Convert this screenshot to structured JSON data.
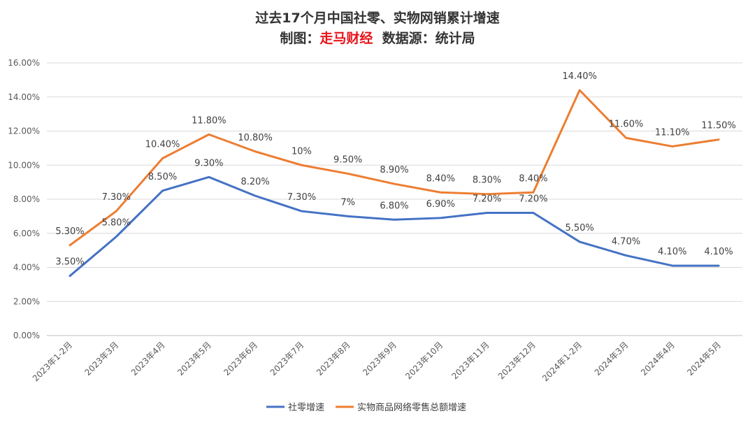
{
  "chart_data": {
    "type": "line",
    "title": "过去17个月中国社零、实物网销累计增速",
    "subtitle": {
      "prefix": "制图：",
      "brand": "走马财经",
      "suffix": "  数据源：统计局"
    },
    "categories": [
      "2023年1-2月",
      "2023年3月",
      "2023年4月",
      "2023年5月",
      "2023年6月",
      "2023年7月",
      "2023年8月",
      "2023年9月",
      "2023年10月",
      "2023年11月",
      "2023年12月",
      "2024年1-2月",
      "2024年3月",
      "2024年4月",
      "2024年5月"
    ],
    "y_ticks": [
      "0.00%",
      "2.00%",
      "4.00%",
      "6.00%",
      "8.00%",
      "10.00%",
      "12.00%",
      "14.00%",
      "16.00%"
    ],
    "ylim": [
      0,
      16
    ],
    "grid": true,
    "legend_position": "bottom",
    "series": [
      {
        "name": "社零增速",
        "color": "#4472c4",
        "values": [
          3.5,
          5.8,
          8.5,
          9.3,
          8.2,
          7.3,
          7.0,
          6.8,
          6.9,
          7.2,
          7.2,
          5.5,
          4.7,
          4.1,
          4.1
        ],
        "labels": [
          "3.50%",
          "5.80%",
          "8.50%",
          "9.30%",
          "8.20%",
          "7.30%",
          "7%",
          "6.80%",
          "6.90%",
          "7.20%",
          "7.20%",
          "5.50%",
          "4.70%",
          "4.10%",
          "4.10%"
        ]
      },
      {
        "name": "实物商品网络零售总额增速",
        "color": "#ed7d31",
        "values": [
          5.3,
          7.3,
          10.4,
          11.8,
          10.8,
          10.0,
          9.5,
          8.9,
          8.4,
          8.3,
          8.4,
          14.4,
          11.6,
          11.1,
          11.5
        ],
        "labels": [
          "5.30%",
          "7.30%",
          "10.40%",
          "11.80%",
          "10.80%",
          "10%",
          "9.50%",
          "8.90%",
          "8.40%",
          "8.30%",
          "8.40%",
          "14.40%",
          "11.60%",
          "11.10%",
          "11.50%"
        ]
      }
    ]
  }
}
